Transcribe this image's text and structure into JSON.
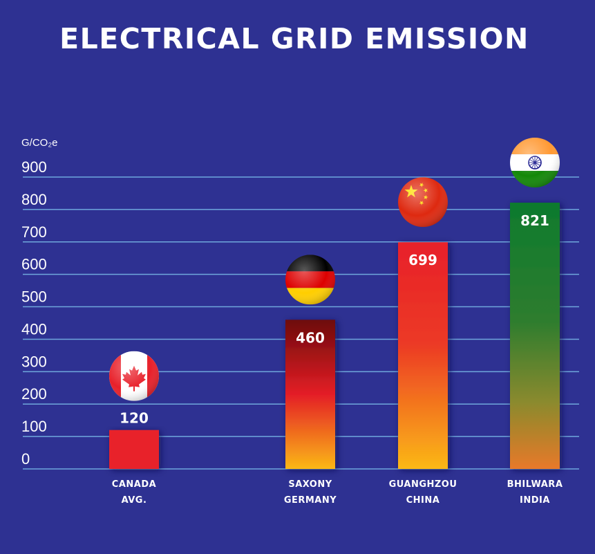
{
  "chart_data": {
    "type": "bar",
    "title": "ELECTRICAL GRID EMISSION",
    "ylabel": "G/CO₂e",
    "ylim": [
      0,
      900
    ],
    "yticks": [
      0,
      100,
      200,
      300,
      400,
      500,
      600,
      700,
      800,
      900
    ],
    "grid": true,
    "categories": [
      {
        "line1": "CANADA",
        "line2": "AVG."
      },
      {
        "line1": "SAXONY",
        "line2": "GERMANY"
      },
      {
        "line1": "GUANGHZOU",
        "line2": "CHINA"
      },
      {
        "line1": "BHILWARA",
        "line2": "INDIA"
      }
    ],
    "values": [
      120,
      460,
      699,
      821
    ],
    "value_labels": [
      "120",
      "460",
      "699",
      "821"
    ],
    "flags": [
      "canada-flag-icon",
      "germany-flag-icon",
      "china-flag-icon",
      "india-flag-icon"
    ],
    "colors": {
      "background": "#2e3192",
      "grid": "#6fa8dc",
      "canada": "#e8202a",
      "germany_top": "#6d0a0a",
      "germany_mid": "#e41e26",
      "germany_bottom": "#fbb817",
      "china_top": "#e8202a",
      "china_bottom": "#fbb817",
      "india_top": "#0d7a2e",
      "india_mid": "#5f8a2c",
      "india_bottom": "#e8792a"
    }
  }
}
